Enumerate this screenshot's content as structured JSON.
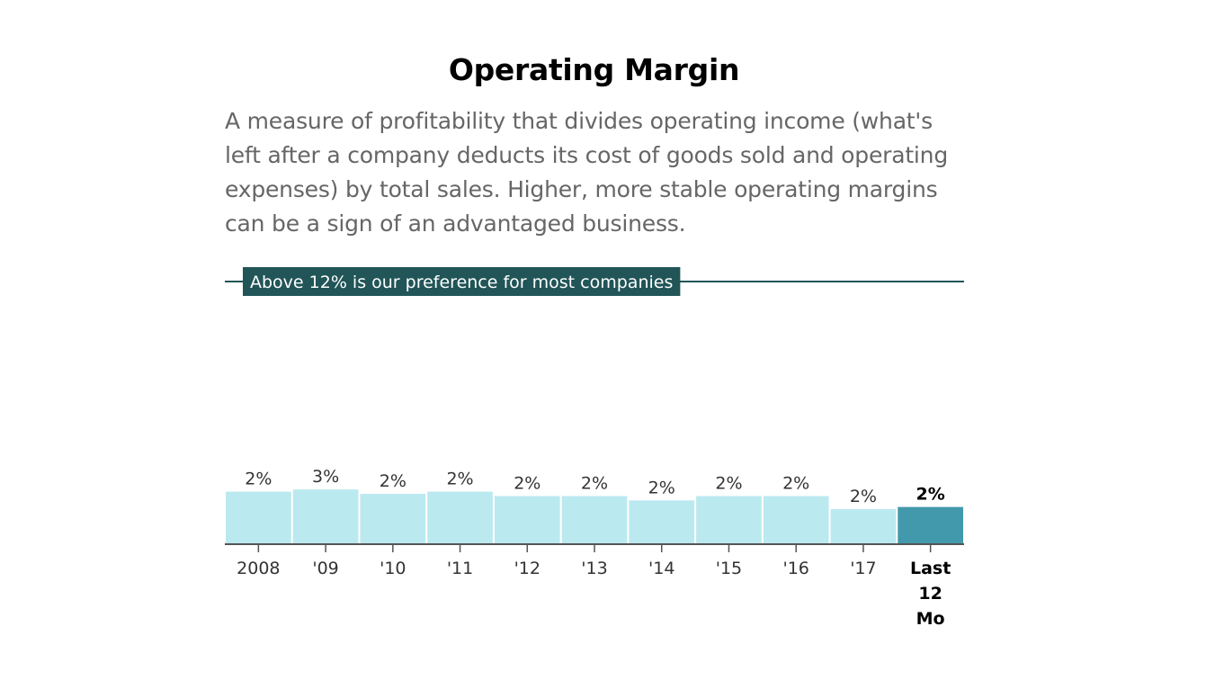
{
  "chart_data": {
    "type": "bar",
    "title": "Operating Margin",
    "description": "A measure of profitability that divides operating income (what's left after a company deducts its cost of goods sold and operating expenses) by total sales. Higher, more stable operating margins can be a sign of an advantaged business.",
    "threshold": {
      "value": 12,
      "label": "Above 12% is our preference for most companies"
    },
    "categories": [
      "2008",
      "'09",
      "'10",
      "'11",
      "'12",
      "'13",
      "'14",
      "'15",
      "'16",
      "'17",
      "Last 12 Mo"
    ],
    "values": [
      2.4,
      2.5,
      2.3,
      2.4,
      2.2,
      2.2,
      2.0,
      2.2,
      2.2,
      1.6,
      1.7
    ],
    "value_labels": [
      "2%",
      "3%",
      "2%",
      "2%",
      "2%",
      "2%",
      "2%",
      "2%",
      "2%",
      "2%",
      "2%"
    ],
    "ylim": [
      0,
      12
    ],
    "xlabel": "",
    "ylabel": "",
    "grid": false,
    "highlight_index": 10,
    "colors": {
      "bar": "#bbe9f0",
      "highlight": "#4399ac",
      "threshold": "#215558",
      "axis": "#555555",
      "label": "#333333"
    }
  }
}
